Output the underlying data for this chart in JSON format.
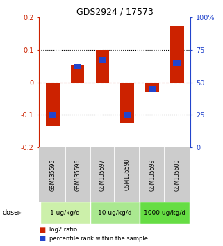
{
  "title": "GDS2924 / 17573",
  "samples": [
    "GSM135595",
    "GSM135596",
    "GSM135597",
    "GSM135598",
    "GSM135599",
    "GSM135600"
  ],
  "log2_ratio": [
    -0.135,
    0.055,
    0.1,
    -0.125,
    -0.03,
    0.175
  ],
  "percentile_rank": [
    25,
    62,
    67,
    25,
    45,
    65
  ],
  "dose_groups": [
    {
      "label": "1 ug/kg/d",
      "samples": [
        0,
        1
      ],
      "color": "#ccf0aa"
    },
    {
      "label": "10 ug/kg/d",
      "samples": [
        2,
        3
      ],
      "color": "#aae890"
    },
    {
      "label": "1000 ug/kg/d",
      "samples": [
        4,
        5
      ],
      "color": "#66dd44"
    }
  ],
  "bar_color_red": "#cc2200",
  "bar_color_blue": "#2244cc",
  "ylim_left": [
    -0.2,
    0.2
  ],
  "ylim_right": [
    0,
    100
  ],
  "yticks_left": [
    -0.2,
    -0.1,
    0.0,
    0.1,
    0.2
  ],
  "yticks_right": [
    0,
    25,
    50,
    75,
    100
  ],
  "ytick_labels_right": [
    "0",
    "25",
    "50",
    "75",
    "100%"
  ],
  "hline_dotted": [
    0.1,
    -0.1
  ],
  "hline_dashed": 0.0,
  "bar_width": 0.55,
  "background_color": "#ffffff",
  "plot_bg": "#ffffff",
  "axis_color_left": "#cc2200",
  "axis_color_right": "#2244cc",
  "dose_label": "dose",
  "legend_red": "log2 ratio",
  "legend_blue": "percentile rank within the sample",
  "sample_bg": "#cccccc"
}
